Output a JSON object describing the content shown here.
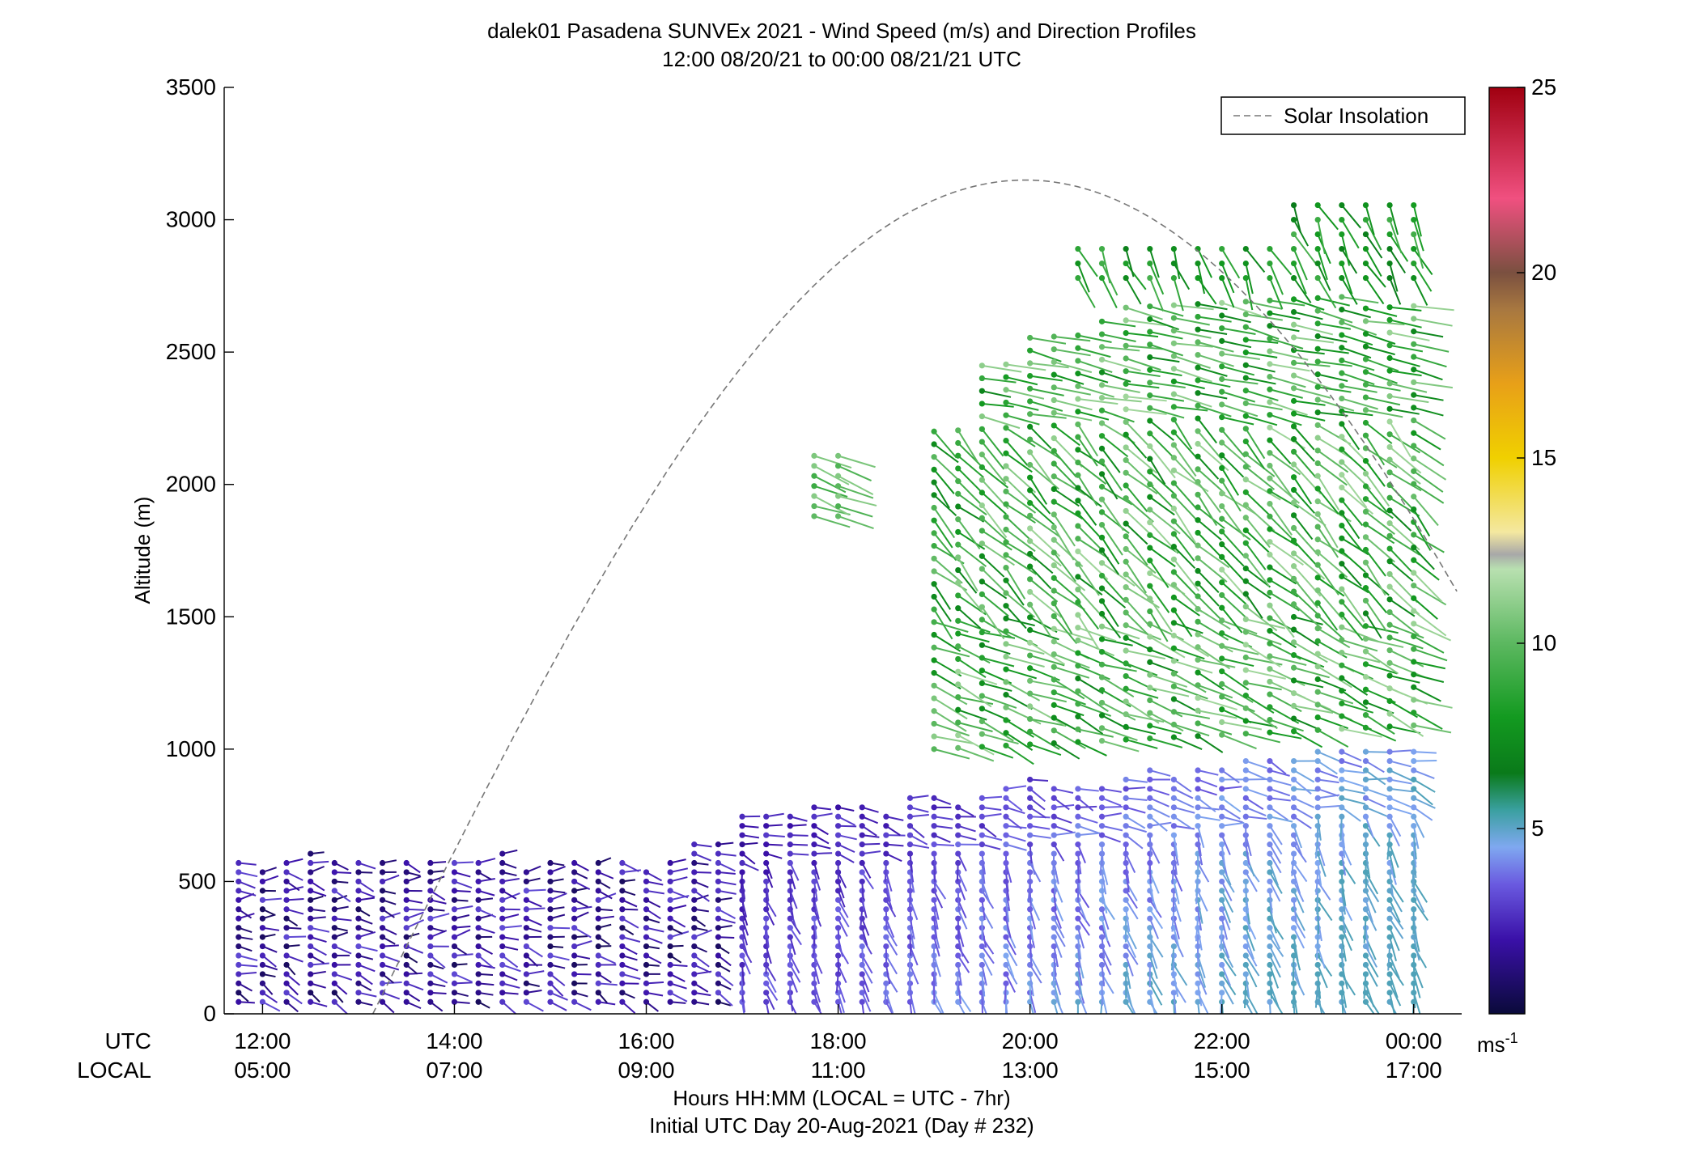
{
  "chart_data": {
    "type": "scatter",
    "title": "dalek01 Pasadena SUNVEx 2021 - Wind Speed (m/s) and Direction Profiles",
    "subtitle": "12:00 08/20/21 to 00:00 08/21/21  UTC",
    "ylabel": "Altitude (m)",
    "xlabel": "Hours HH:MM  (LOCAL = UTC - 7hr)",
    "xlabel2": "Initial UTC Day 20-Aug-2021 (Day # 232)",
    "row_label_utc": "UTC",
    "row_label_local": "LOCAL",
    "xlim": [
      11.6,
      24.5
    ],
    "ylim": [
      0,
      3500
    ],
    "y_ticks": [
      0,
      500,
      1000,
      1500,
      2000,
      2500,
      3000,
      3500
    ],
    "x_ticks": [
      {
        "x": 12,
        "utc": "12:00",
        "local": "05:00"
      },
      {
        "x": 14,
        "utc": "14:00",
        "local": "07:00"
      },
      {
        "x": 16,
        "utc": "16:00",
        "local": "09:00"
      },
      {
        "x": 18,
        "utc": "18:00",
        "local": "11:00"
      },
      {
        "x": 20,
        "utc": "20:00",
        "local": "13:00"
      },
      {
        "x": 22,
        "utc": "22:00",
        "local": "15:00"
      },
      {
        "x": 24,
        "utc": "00:00",
        "local": "17:00"
      }
    ],
    "legend": {
      "label": "Solar Insolation",
      "position": "top-right"
    },
    "solar_insolation": {
      "peak_hour": 19.95,
      "peak_altitude": 3150,
      "zero_hour_start": 13.15,
      "style": "dashed",
      "color": "#777777"
    },
    "colorbar": {
      "ticks": [
        5,
        10,
        15,
        20,
        25
      ],
      "unit": "ms-1",
      "unit_base": "ms",
      "unit_exp": "-1",
      "range": [
        0,
        25
      ],
      "stops": [
        {
          "v": 0,
          "c": "#0a0a3a"
        },
        {
          "v": 2,
          "c": "#3a10a8"
        },
        {
          "v": 3.5,
          "c": "#6a5ae0"
        },
        {
          "v": 4.5,
          "c": "#7fa8f0"
        },
        {
          "v": 5.5,
          "c": "#3aa0a0"
        },
        {
          "v": 6.5,
          "c": "#0a7a1a"
        },
        {
          "v": 8,
          "c": "#139a20"
        },
        {
          "v": 10,
          "c": "#5cb860"
        },
        {
          "v": 12,
          "c": "#b8e0b0"
        },
        {
          "v": 12.4,
          "c": "#a8a8a8"
        },
        {
          "v": 13,
          "c": "#f4e8a0"
        },
        {
          "v": 15,
          "c": "#f0d000"
        },
        {
          "v": 17,
          "c": "#e8a018"
        },
        {
          "v": 19,
          "c": "#a87840"
        },
        {
          "v": 20,
          "c": "#7a5040"
        },
        {
          "v": 22,
          "c": "#f05080"
        },
        {
          "v": 25,
          "c": "#a00010"
        }
      ]
    },
    "wind_profiles": [
      {
        "region": "boundary-layer",
        "x_range": [
          11.75,
          24.0
        ],
        "dx": 0.25,
        "altitude_range": [
          40,
          600
        ],
        "speed_range": [
          0.5,
          3.5
        ],
        "direction": "light variable, mostly westerly"
      },
      {
        "region": "boundary-layer-afternoon",
        "x_range": [
          17.0,
          24.0
        ],
        "dx": 0.25,
        "altitude_range": [
          40,
          950
        ],
        "speed_range": [
          2.5,
          5.0
        ],
        "direction": "southwesterly"
      },
      {
        "region": "elevated-layer-afternoon",
        "x_range": [
          19.0,
          24.0
        ],
        "dx": 0.25,
        "altitude_range": [
          1000,
          2900
        ],
        "speed_range": [
          7,
          12
        ],
        "direction": "westerly to northwesterly"
      },
      {
        "region": "elevated-patch",
        "x_range": [
          17.7,
          18.0
        ],
        "dx": 0.25,
        "altitude_range": [
          1870,
          2130
        ],
        "speed_range": [
          9,
          11
        ],
        "direction": "westerly"
      }
    ]
  }
}
